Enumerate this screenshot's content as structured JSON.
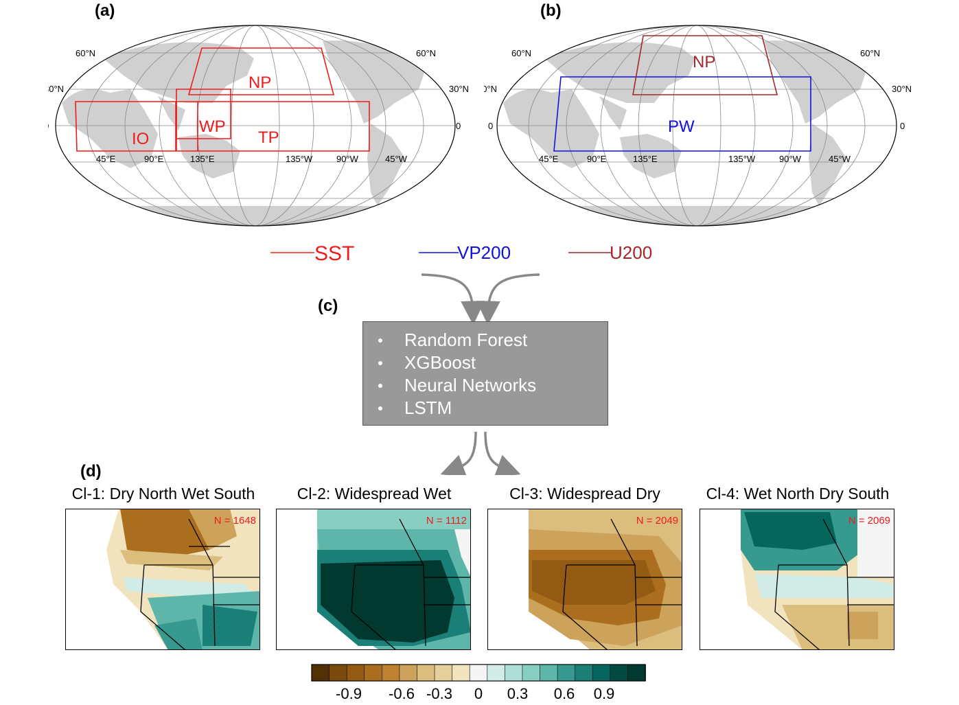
{
  "panels": {
    "a": "(a)",
    "b": "(b)",
    "c": "(c)",
    "d": "(d)"
  },
  "map_a": {
    "lat_labels": [
      "60°N",
      "30°N",
      "0"
    ],
    "lon_labels": [
      "45°E",
      "90°E",
      "135°E",
      "135°W",
      "90°W",
      "45°W"
    ],
    "regions": [
      "NP",
      "IO",
      "WP",
      "TP"
    ],
    "region_color": "#ee1c1c"
  },
  "map_b": {
    "lat_labels": [
      "60°N",
      "30°N",
      "0"
    ],
    "lon_labels": [
      "45°E",
      "90°E",
      "135°E",
      "135°W",
      "90°W",
      "45°W"
    ],
    "regions": [
      "NP",
      "PW"
    ],
    "np_color": "#a3272b",
    "pw_color": "#1010e0"
  },
  "legend": [
    {
      "label": "SST",
      "color": "#ee1c1c"
    },
    {
      "label": "VP200",
      "color": "#1010e0"
    },
    {
      "label": "U200",
      "color": "#a3272b"
    }
  ],
  "models": [
    "Random Forest",
    "XGBoost",
    "Neural Networks",
    "LSTM"
  ],
  "clusters": [
    {
      "title": "Cl-1: Dry North Wet South",
      "n": "N = 1648",
      "pattern": "dry-north-wet-south"
    },
    {
      "title": "Cl-2: Widespread Wet",
      "n": "N = 1112",
      "pattern": "widespread-wet"
    },
    {
      "title": "Cl-3: Widespread Dry",
      "n": "N = 2049",
      "pattern": "widespread-dry"
    },
    {
      "title": "Cl-4: Wet North Dry South",
      "n": "N = 2069",
      "pattern": "wet-north-dry-south"
    }
  ],
  "colorbar": {
    "colors": [
      "#543005",
      "#7a4a0d",
      "#935a14",
      "#ab6e1e",
      "#bf8230",
      "#cda25a",
      "#dbbd7e",
      "#e6cf9a",
      "#f1e3bd",
      "#f5f5f5",
      "#d1ece7",
      "#addfd6",
      "#88cfc2",
      "#5eb6ab",
      "#369a90",
      "#1a7f76",
      "#04665d",
      "#024b42",
      "#01382f"
    ],
    "tick_labels": [
      "-0.9",
      "-0.6",
      "-0.3",
      "0",
      "0.3",
      "0.6",
      "0.9"
    ]
  }
}
